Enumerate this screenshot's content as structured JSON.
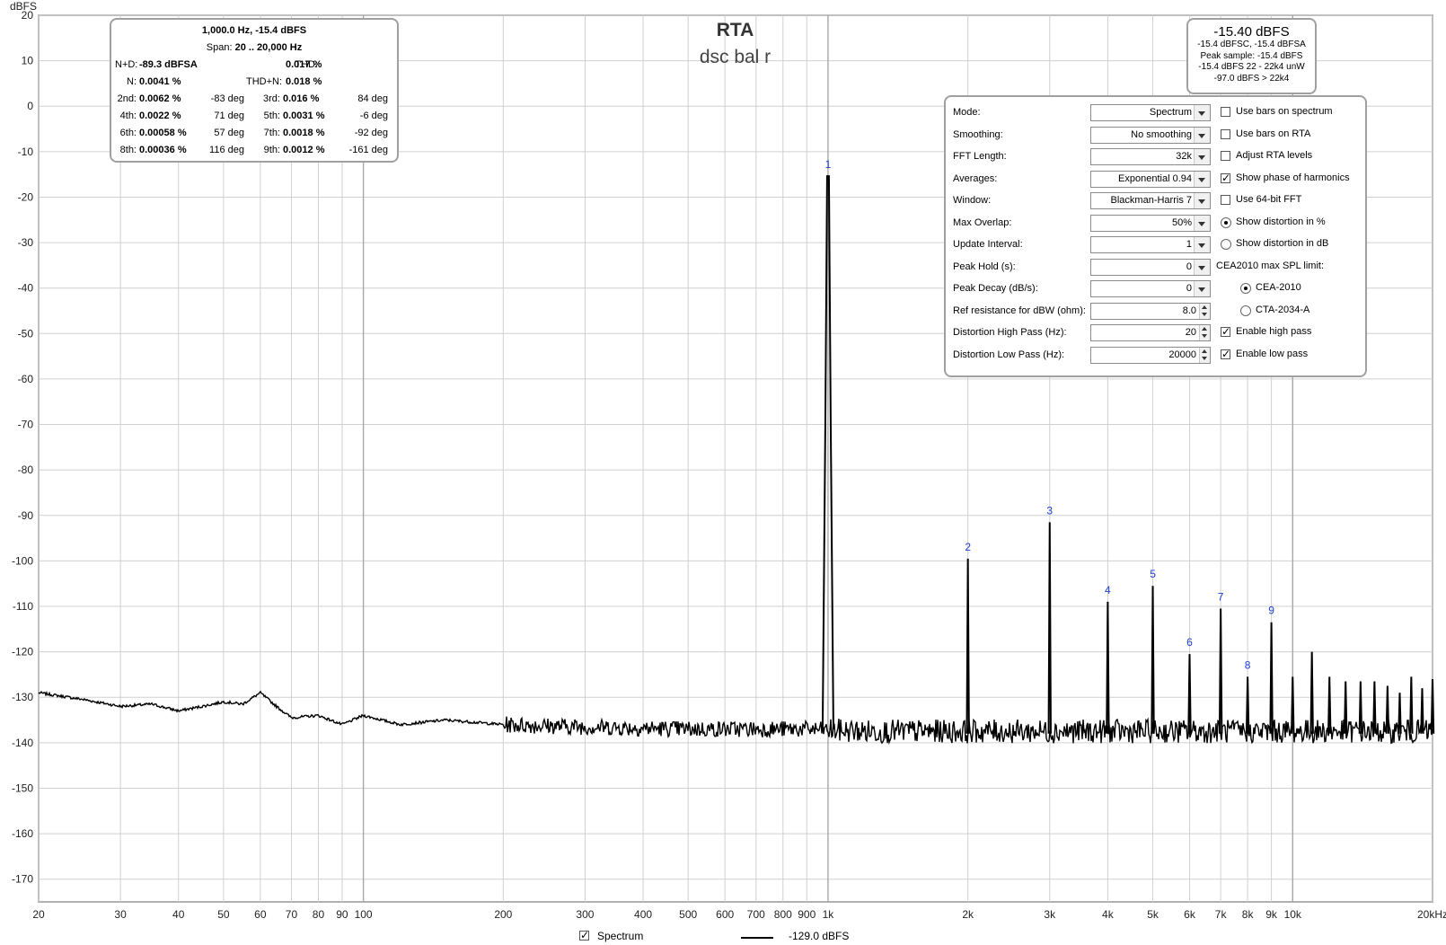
{
  "chart_data": {
    "type": "line",
    "title": "RTA",
    "subtitle": "dsc bal r",
    "ylabel": "dBFS",
    "xlabel": "",
    "x_scale": "log",
    "xlim": [
      20,
      20000
    ],
    "ylim": [
      -175,
      20
    ],
    "x_ticks": [
      20,
      30,
      40,
      50,
      60,
      70,
      80,
      90,
      100,
      200,
      300,
      400,
      500,
      600,
      700,
      800,
      900,
      1000,
      2000,
      3000,
      4000,
      5000,
      6000,
      7000,
      8000,
      9000,
      10000,
      20000
    ],
    "x_tick_labels": [
      "20",
      "30",
      "40",
      "50",
      "60",
      "70",
      "80",
      "90",
      "100",
      "200",
      "300",
      "400",
      "500",
      "600",
      "700",
      "800",
      "900",
      "1k",
      "2k",
      "3k",
      "4k",
      "5k",
      "6k",
      "7k",
      "8k",
      "9k",
      "10k",
      "20kHz"
    ],
    "y_ticks": [
      20,
      10,
      0,
      -10,
      -20,
      -30,
      -40,
      -50,
      -60,
      -70,
      -80,
      -90,
      -100,
      -110,
      -120,
      -130,
      -140,
      -150,
      -160,
      -170
    ],
    "grid": true,
    "series": [
      {
        "name": "Spectrum",
        "color": "#000000",
        "noise_floor": [
          [
            20,
            -129
          ],
          [
            25,
            -130.5
          ],
          [
            30,
            -132
          ],
          [
            35,
            -131.5
          ],
          [
            40,
            -133
          ],
          [
            45,
            -132
          ],
          [
            50,
            -131
          ],
          [
            55,
            -131.5
          ],
          [
            60,
            -129
          ],
          [
            65,
            -132
          ],
          [
            70,
            -134.5
          ],
          [
            80,
            -134
          ],
          [
            90,
            -136
          ],
          [
            100,
            -134
          ],
          [
            120,
            -136
          ],
          [
            150,
            -135
          ],
          [
            200,
            -136
          ],
          [
            300,
            -136.5
          ],
          [
            500,
            -137
          ],
          [
            880,
            -137
          ],
          [
            1200,
            -137.5
          ],
          [
            2000,
            -137.5
          ],
          [
            5000,
            -137.5
          ],
          [
            10000,
            -137.5
          ],
          [
            20000,
            -137.5
          ]
        ],
        "fundamental": {
          "freq": 1000,
          "level": -15.4
        },
        "peaks": [
          [
            2000,
            -99.5
          ],
          [
            3000,
            -91.5
          ],
          [
            4000,
            -109
          ],
          [
            5000,
            -105.5
          ],
          [
            6000,
            -120.5
          ],
          [
            7000,
            -110.5
          ],
          [
            8000,
            -125.5
          ],
          [
            9000,
            -113.5
          ],
          [
            10000,
            -125.5
          ],
          [
            11000,
            -120
          ],
          [
            12000,
            -125.5
          ],
          [
            13000,
            -126.5
          ],
          [
            14000,
            -126.5
          ],
          [
            15000,
            -126.5
          ],
          [
            16000,
            -127.5
          ],
          [
            17000,
            -129
          ],
          [
            18000,
            -125.5
          ],
          [
            19000,
            -128
          ],
          [
            20000,
            -126
          ]
        ]
      }
    ],
    "harmonic_markers": [
      {
        "label": "1",
        "freq": 1000
      },
      {
        "label": "2",
        "freq": 2000
      },
      {
        "label": "3",
        "freq": 3000
      },
      {
        "label": "4",
        "freq": 4000
      },
      {
        "label": "5",
        "freq": 5000
      },
      {
        "label": "6",
        "freq": 6000
      },
      {
        "label": "7",
        "freq": 7000
      },
      {
        "label": "8",
        "freq": 8000
      },
      {
        "label": "9",
        "freq": 9000
      }
    ]
  },
  "distortion": {
    "line1": "1,000.0 Hz, -15.4 dBFS",
    "span_label": "Span:",
    "span_value": "20 .. 20,000 Hz",
    "nd_label": "N+D:",
    "nd_value": "-89.3 dBFSA",
    "thd_label": "THD:",
    "thd_value": "0.017 %",
    "n_label": "N:",
    "n_value": "0.0041 %",
    "thdn_label": "THD+N:",
    "thdn_value": "0.018 %",
    "harmonics": [
      {
        "label": "2nd:",
        "value": "0.0062 %",
        "phase": "-83 deg"
      },
      {
        "label": "3rd:",
        "value": "0.016 %",
        "phase": "84 deg"
      },
      {
        "label": "4th:",
        "value": "0.0022 %",
        "phase": "71 deg"
      },
      {
        "label": "5th:",
        "value": "0.0031 %",
        "phase": "-6 deg"
      },
      {
        "label": "6th:",
        "value": "0.00058 %",
        "phase": "57 deg"
      },
      {
        "label": "7th:",
        "value": "0.0018 %",
        "phase": "-92 deg"
      },
      {
        "label": "8th:",
        "value": "0.00036 %",
        "phase": "116 deg"
      },
      {
        "label": "9th:",
        "value": "0.0012 %",
        "phase": "-161 deg"
      }
    ]
  },
  "level": {
    "main": "-15.40 dBFS",
    "lines": [
      "-15.4 dBFSC, -15.4 dBFSA",
      "Peak sample: -15.4 dBFS",
      "-15.4 dBFS 22 - 22k4 unW",
      "-97.0 dBFS > 22k4"
    ]
  },
  "settings": {
    "rows": [
      {
        "label": "Mode:",
        "value": "Spectrum",
        "kind": "dropdown"
      },
      {
        "label": "Smoothing:",
        "value": "No  smoothing",
        "kind": "dropdown"
      },
      {
        "label": "FFT Length:",
        "value": "32k",
        "kind": "dropdown"
      },
      {
        "label": "Averages:",
        "value": "Exponential 0.94",
        "kind": "dropdown"
      },
      {
        "label": "Window:",
        "value": "Blackman-Harris 7",
        "kind": "dropdown"
      },
      {
        "label": "Max Overlap:",
        "value": "50%",
        "kind": "dropdown"
      },
      {
        "label": "Update Interval:",
        "value": "1",
        "kind": "dropdown"
      },
      {
        "label": "Peak Hold (s):",
        "value": "0",
        "kind": "dropdown"
      },
      {
        "label": "Peak Decay (dB/s):",
        "value": "0",
        "kind": "dropdown"
      },
      {
        "label": "Ref resistance for dBW (ohm):",
        "value": "8.0",
        "kind": "spinner"
      },
      {
        "label": "Distortion High Pass (Hz):",
        "value": "20",
        "kind": "spinner"
      },
      {
        "label": "Distortion Low Pass (Hz):",
        "value": "20000",
        "kind": "spinner"
      }
    ],
    "options": [
      {
        "label": "Use bars on spectrum",
        "kind": "checkbox",
        "checked": false
      },
      {
        "label": "Use bars on RTA",
        "kind": "checkbox",
        "checked": false
      },
      {
        "label": "Adjust RTA levels",
        "kind": "checkbox",
        "checked": false
      },
      {
        "label": "Show phase of harmonics",
        "kind": "checkbox",
        "checked": true
      },
      {
        "label": "Use 64-bit FFT",
        "kind": "checkbox",
        "checked": false
      },
      {
        "label": "Show distortion in %",
        "kind": "radio",
        "checked": true
      },
      {
        "label": "Show distortion in dB",
        "kind": "radio",
        "checked": false
      },
      {
        "label": "CEA2010 max SPL limit:",
        "kind": "label",
        "checked": false
      },
      {
        "label": "CEA-2010",
        "kind": "radio-indent",
        "checked": true
      },
      {
        "label": "CTA-2034-A",
        "kind": "radio-indent",
        "checked": false
      },
      {
        "label": "Enable high pass",
        "kind": "checkbox",
        "checked": true
      },
      {
        "label": "Enable low pass",
        "kind": "checkbox",
        "checked": true
      }
    ]
  },
  "legend": {
    "label": "Spectrum",
    "checked": true,
    "value": "-129.0 dBFS"
  }
}
